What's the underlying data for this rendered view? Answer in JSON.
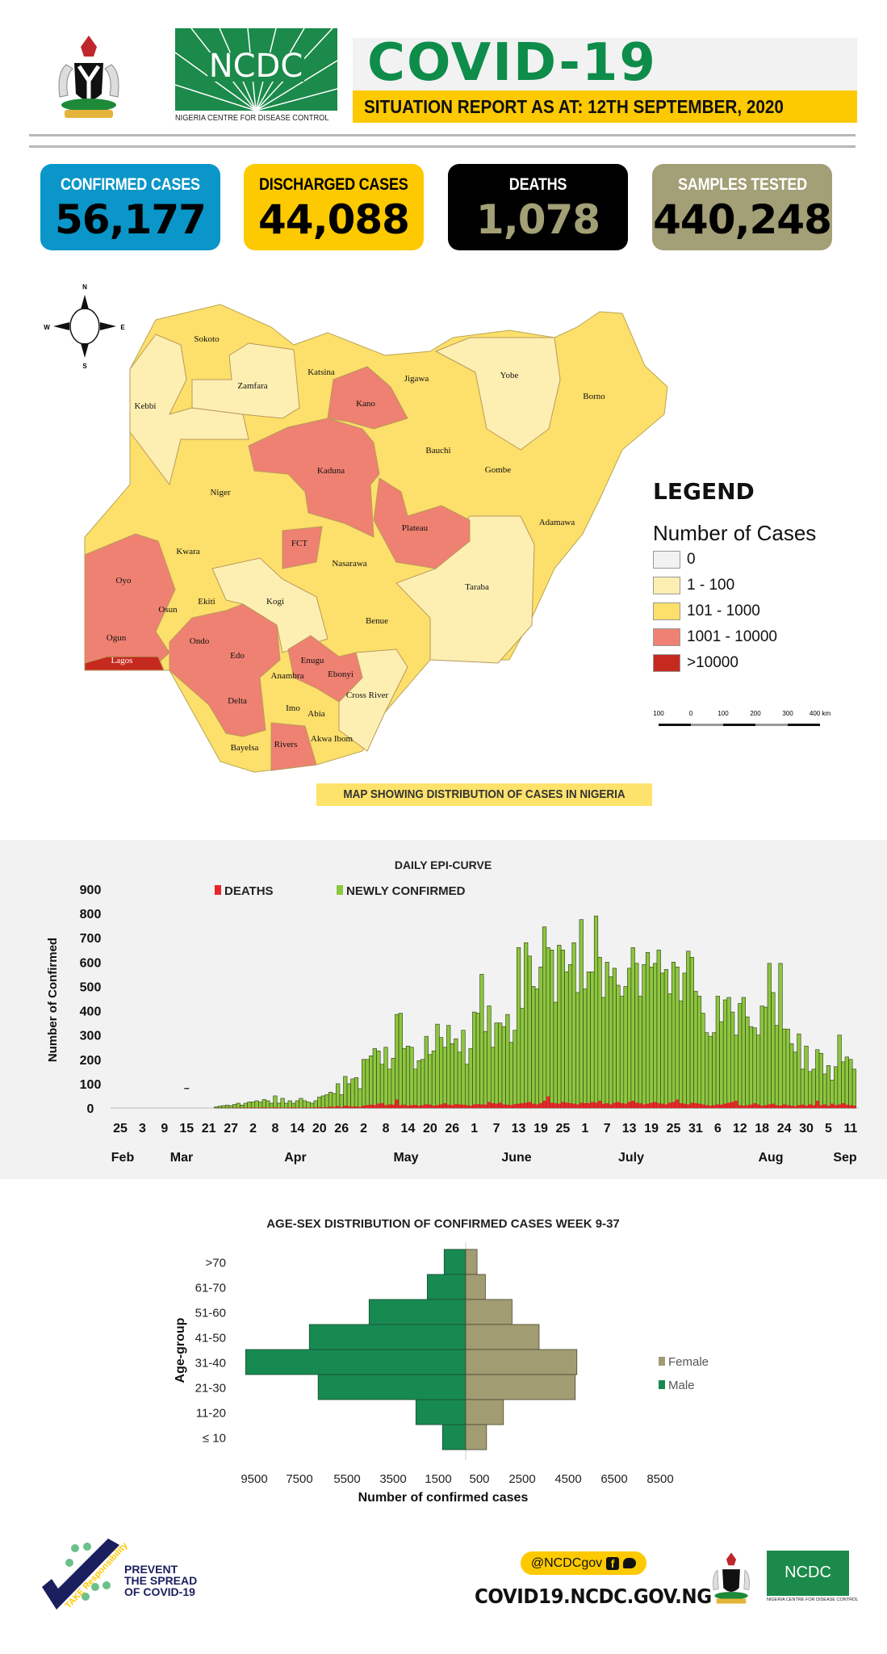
{
  "header": {
    "title": "COVID-19",
    "subtitle": "SITUATION REPORT AS AT: 12TH SEPTEMBER, 2020",
    "ncdc_logo_text": "NCDC",
    "ncdc_full_name": "NIGERIA CENTRE FOR DISEASE CONTROL"
  },
  "stats": [
    {
      "label": "CONFIRMED CASES",
      "value": "56,177",
      "bg": "#0a96c9",
      "label_color": "#ffffff",
      "value_color": "#000000"
    },
    {
      "label": "DISCHARGED CASES",
      "value": "44,088",
      "bg": "#fdc900",
      "label_color": "#000000",
      "value_color": "#000000"
    },
    {
      "label": "DEATHS",
      "value": "1,078",
      "bg": "#000000",
      "label_color": "#ffffff",
      "value_color": "#a39f76"
    },
    {
      "label": "SAMPLES TESTED",
      "value": "440,248",
      "bg": "#a39f76",
      "label_color": "#ffffff",
      "value_color": "#000000"
    }
  ],
  "map": {
    "compass": {
      "n": "N",
      "s": "S",
      "e": "E",
      "w": "W"
    },
    "legend_title": "LEGEND",
    "legend_subtitle": "Number of Cases",
    "legend": [
      {
        "label": "0",
        "color": "#f2f2f2"
      },
      {
        "label": "1 - 100",
        "color": "#fdefb2"
      },
      {
        "label": "101 - 1000",
        "color": "#fddf6b"
      },
      {
        "label": "1001 - 10000",
        "color": "#ef8172"
      },
      {
        "label": ">10000",
        "color": "#c62a1f"
      }
    ],
    "scale_labels": [
      "100",
      "0",
      "100",
      "200",
      "300",
      "400 km"
    ],
    "caption": "MAP SHOWING DISTRIBUTION OF CASES IN NIGERIA",
    "states": [
      {
        "name": "Sokoto",
        "cat": 2
      },
      {
        "name": "Zamfara",
        "cat": 1
      },
      {
        "name": "Kebbi",
        "cat": 1
      },
      {
        "name": "Katsina",
        "cat": 2
      },
      {
        "name": "Kano",
        "cat": 3
      },
      {
        "name": "Jigawa",
        "cat": 2
      },
      {
        "name": "Yobe",
        "cat": 1
      },
      {
        "name": "Borno",
        "cat": 2
      },
      {
        "name": "Bauchi",
        "cat": 2
      },
      {
        "name": "Gombe",
        "cat": 2
      },
      {
        "name": "Kaduna",
        "cat": 3
      },
      {
        "name": "Niger",
        "cat": 2
      },
      {
        "name": "Plateau",
        "cat": 3
      },
      {
        "name": "Adamawa",
        "cat": 2
      },
      {
        "name": "FCT",
        "cat": 3
      },
      {
        "name": "Kwara",
        "cat": 2
      },
      {
        "name": "Nasarawa",
        "cat": 2
      },
      {
        "name": "Oyo",
        "cat": 3
      },
      {
        "name": "Taraba",
        "cat": 1
      },
      {
        "name": "Ekiti",
        "cat": 2
      },
      {
        "name": "Osun",
        "cat": 2
      },
      {
        "name": "Kogi",
        "cat": 1
      },
      {
        "name": "Benue",
        "cat": 2
      },
      {
        "name": "Ogun",
        "cat": 3
      },
      {
        "name": "Ondo",
        "cat": 3
      },
      {
        "name": "Edo",
        "cat": 3
      },
      {
        "name": "Lagos",
        "cat": 4
      },
      {
        "name": "Enugu",
        "cat": 3
      },
      {
        "name": "Anambra",
        "cat": 2
      },
      {
        "name": "Ebonyi",
        "cat": 3
      },
      {
        "name": "Cross River",
        "cat": 1
      },
      {
        "name": "Delta",
        "cat": 3
      },
      {
        "name": "Imo",
        "cat": 2
      },
      {
        "name": "Abia",
        "cat": 2
      },
      {
        "name": "Akwa Ibom",
        "cat": 2
      },
      {
        "name": "Bayelsa",
        "cat": 2
      },
      {
        "name": "Rivers",
        "cat": 3
      }
    ]
  },
  "chart_data": [
    {
      "type": "bar",
      "title": "DAILY EPI-CURVE",
      "ylabel": "Number of Confirmed",
      "xlabel": "",
      "ylim": [
        0,
        900
      ],
      "yticks": [
        "0",
        "100",
        "200",
        "300",
        "400",
        "500",
        "600",
        "700",
        "800",
        "900"
      ],
      "x_start": "2020-02-25",
      "series_start": "2020-03-22",
      "xtick_labels": [
        "25",
        "3",
        "9",
        "15",
        "21",
        "27",
        "2",
        "8",
        "14",
        "20",
        "26",
        "2",
        "8",
        "14",
        "20",
        "26",
        "1",
        "7",
        "13",
        "19",
        "25",
        "1",
        "7",
        "13",
        "19",
        "25",
        "31",
        "6",
        "12",
        "18",
        "24",
        "30",
        "5",
        "11"
      ],
      "month_labels": [
        {
          "label": "Feb",
          "day": 0
        },
        {
          "label": "Mar",
          "day": 15
        },
        {
          "label": "Apr",
          "day": 51
        },
        {
          "label": "May",
          "day": 79
        },
        {
          "label": "June",
          "day": 115
        },
        {
          "label": "July",
          "day": 145
        },
        {
          "label": "Aug",
          "day": 183
        },
        {
          "label": "Sep",
          "day": 199
        }
      ],
      "legend": [
        {
          "name": "DEATHS",
          "color": "#e8262a"
        },
        {
          "name": "NEWLY CONFIRMED",
          "color": "#8dc63f"
        }
      ],
      "series": [
        {
          "name": "NEWLY CONFIRMED",
          "color": "#8dc63f",
          "values": [
            5,
            8,
            10,
            12,
            10,
            15,
            20,
            12,
            20,
            25,
            25,
            30,
            25,
            35,
            30,
            20,
            50,
            20,
            40,
            20,
            30,
            20,
            30,
            40,
            30,
            25,
            20,
            30,
            45,
            50,
            55,
            65,
            60,
            100,
            55,
            130,
            100,
            120,
            125,
            80,
            200,
            200,
            215,
            245,
            235,
            180,
            250,
            160,
            205,
            385,
            390,
            245,
            255,
            250,
            160,
            195,
            200,
            295,
            220,
            235,
            345,
            290,
            250,
            340,
            265,
            285,
            230,
            320,
            180,
            245,
            395,
            390,
            550,
            315,
            420,
            250,
            350,
            350,
            335,
            385,
            270,
            320,
            660,
            410,
            680,
            625,
            500,
            490,
            580,
            745,
            660,
            650,
            435,
            670,
            650,
            560,
            590,
            680,
            475,
            775,
            490,
            560,
            560,
            790,
            620,
            455,
            600,
            540,
            575,
            505,
            460,
            500,
            575,
            660,
            595,
            460,
            590,
            640,
            580,
            595,
            650,
            555,
            570,
            470,
            600,
            580,
            440,
            555,
            645,
            620,
            480,
            460,
            390,
            310,
            295,
            310,
            460,
            355,
            445,
            455,
            395,
            300,
            430,
            455,
            375,
            335,
            330,
            300,
            420,
            415,
            595,
            475,
            340,
            595,
            325,
            325,
            265,
            230,
            305,
            160,
            255,
            150,
            160,
            240,
            225,
            140,
            175,
            115,
            170,
            300,
            190,
            210,
            200,
            160
          ]
        },
        {
          "name": "DEATHS",
          "color": "#e8262a",
          "values": [
            0,
            1,
            0,
            1,
            1,
            0,
            2,
            1,
            1,
            2,
            2,
            1,
            2,
            3,
            1,
            2,
            3,
            2,
            2,
            1,
            2,
            3,
            2,
            1,
            3,
            2,
            2,
            3,
            4,
            3,
            4,
            6,
            5,
            8,
            4,
            10,
            8,
            6,
            7,
            5,
            10,
            12,
            14,
            12,
            18,
            20,
            12,
            15,
            14,
            35,
            12,
            14,
            10,
            12,
            13,
            10,
            12,
            15,
            14,
            10,
            12,
            15,
            20,
            14,
            12,
            16,
            15,
            14,
            12,
            10,
            15,
            16,
            15,
            14,
            25,
            20,
            18,
            22,
            15,
            14,
            12,
            16,
            18,
            20,
            22,
            25,
            18,
            15,
            20,
            30,
            48,
            22,
            20,
            18,
            25,
            22,
            20,
            18,
            15,
            22,
            20,
            20,
            25,
            22,
            30,
            18,
            20,
            15,
            22,
            25,
            20,
            18,
            25,
            30,
            22,
            20,
            15,
            18,
            22,
            25,
            20,
            18,
            15,
            22,
            25,
            35,
            20,
            18,
            15,
            22,
            20,
            18,
            15,
            12,
            10,
            12,
            15,
            14,
            18,
            22,
            25,
            30,
            12,
            10,
            12,
            14,
            20,
            15,
            10,
            12,
            15,
            18,
            12,
            10,
            15,
            12,
            10,
            8,
            12,
            14,
            10,
            15,
            12,
            30,
            12,
            15,
            10,
            18,
            12,
            15,
            20,
            14,
            12,
            10
          ]
        }
      ]
    },
    {
      "type": "bar",
      "orientation": "horizontal-pyramid",
      "title": "AGE-SEX DISTRIBUTION OF CONFIRMED CASES WEEK 9-37",
      "xlabel": "Number of confirmed cases",
      "ylabel": "Age-group",
      "categories": [
        ">70",
        "61-70",
        "51-60",
        "41-50",
        "31-40",
        "21-30",
        "11-20",
        "≤ 10"
      ],
      "xtick_labels": [
        "9500",
        "7500",
        "5500",
        "3500",
        "1500",
        "500",
        "2500",
        "4500",
        "6500",
        "8500"
      ],
      "legend": [
        {
          "name": "Female",
          "color": "#a29c72"
        },
        {
          "name": "Male",
          "color": "#178a52"
        }
      ],
      "series": [
        {
          "name": "Male",
          "color": "#178a52",
          "values": [
            930,
            1660,
            4170,
            6750,
            9500,
            6370,
            2150,
            1000
          ]
        },
        {
          "name": "Female",
          "color": "#a29c72",
          "values": [
            490,
            850,
            2000,
            3170,
            4800,
            4730,
            1630,
            900
          ]
        }
      ]
    }
  ],
  "footer": {
    "campaign_badge": "TAKE Responsibility",
    "campaign_text": [
      "PREVENT",
      "THE SPREAD",
      "OF COVID-19"
    ],
    "social_handle": "@NCDCgov",
    "website": "COVID19.NCDC.GOV.NG",
    "ncdc_logo_text": "NCDC",
    "ncdc_full_name": "NIGERIA CENTRE FOR DISEASE CONTROL"
  }
}
